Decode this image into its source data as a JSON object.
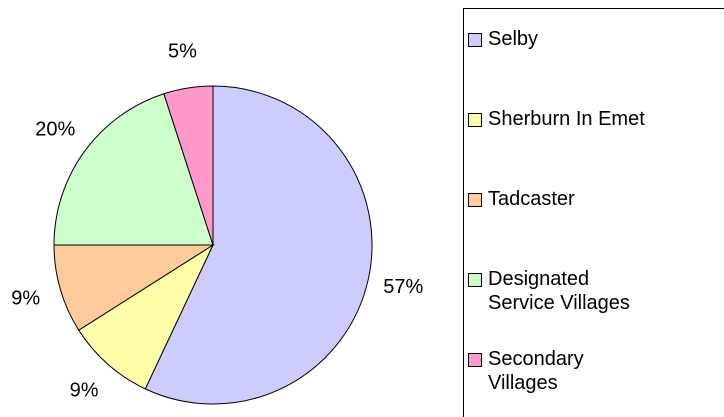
{
  "chart_data": {
    "type": "pie",
    "categories": [
      "Selby",
      "Sherburn In Emet",
      "Tadcaster",
      "Designated\nService Villages",
      "Secondary\nVillages"
    ],
    "values": [
      57,
      9,
      9,
      20,
      5
    ],
    "value_labels": [
      "57%",
      "9%",
      "9%",
      "20%",
      "5%"
    ],
    "colors": [
      "#ccccff",
      "#ffffaa",
      "#ffcc99",
      "#ccffcc",
      "#ff99cc"
    ]
  }
}
